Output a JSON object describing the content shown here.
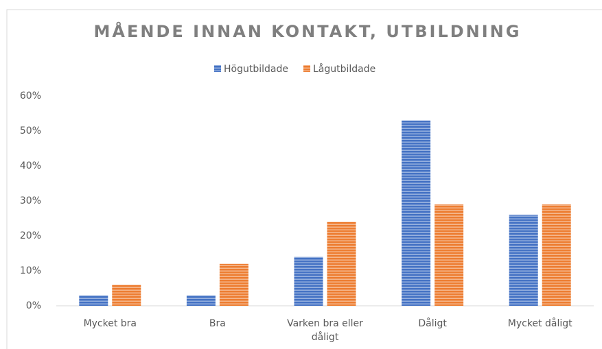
{
  "chart_data": {
    "type": "bar",
    "title": "MÅENDE INNAN KONTAKT, UTBILDNING",
    "categories": [
      "Mycket bra",
      "Bra",
      "Varken bra eller dåligt",
      "Dåligt",
      "Mycket dåligt"
    ],
    "series": [
      {
        "name": "Högutbildade",
        "color": "#4472c4",
        "values": [
          3,
          3,
          14,
          53,
          26
        ]
      },
      {
        "name": "Lågutbildade",
        "color": "#ed7d31",
        "values": [
          6,
          12,
          24,
          29,
          29
        ]
      }
    ],
    "ylim": [
      0,
      60
    ],
    "yticks": [
      {
        "value": 0,
        "label": "0%"
      },
      {
        "value": 10,
        "label": "10%"
      },
      {
        "value": 20,
        "label": "20%"
      },
      {
        "value": 30,
        "label": "30%"
      },
      {
        "value": 40,
        "label": "40%"
      },
      {
        "value": 50,
        "label": "50%"
      },
      {
        "value": 60,
        "label": "60%"
      }
    ],
    "legend": "top"
  }
}
